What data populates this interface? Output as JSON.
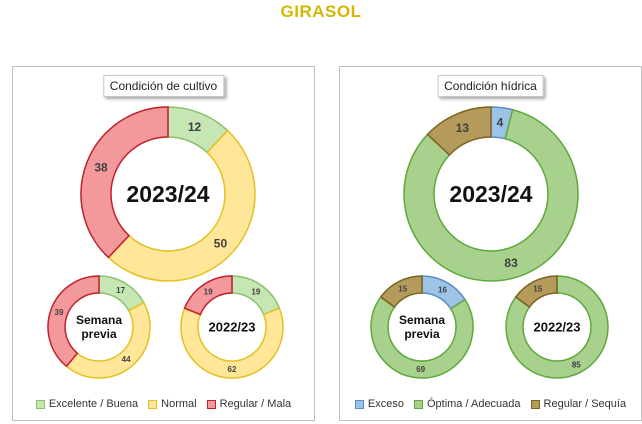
{
  "title": "GIRASOL",
  "chart_data": [
    {
      "type": "donut",
      "panel_title": "Condición de cultivo",
      "legend": [
        "Excelente / Buena",
        "Normal",
        "Regular / Mala"
      ],
      "colors": [
        "#c6e6b4",
        "#ffe699",
        "#f4999b"
      ],
      "edge_colors": [
        "#8cc06c",
        "#e6c020",
        "#c0202c"
      ],
      "donuts": [
        {
          "name": "2023/24",
          "values": [
            12,
            50,
            38
          ]
        },
        {
          "name": "Semana previa",
          "values": [
            17,
            44,
            39
          ]
        },
        {
          "name": "2022/23",
          "values": [
            19,
            62,
            19
          ]
        }
      ]
    },
    {
      "type": "donut",
      "panel_title": "Condición hídrica",
      "legend": [
        "Exceso",
        "Óptima / Adecuada",
        "Regular / Sequía"
      ],
      "colors": [
        "#9dc3e6",
        "#a9d18e",
        "#b49b5c"
      ],
      "edge_colors": [
        "#5b8ec4",
        "#5fa83a",
        "#7a6420"
      ],
      "donuts": [
        {
          "name": "2023/24",
          "values": [
            4,
            83,
            13
          ]
        },
        {
          "name": "Semana previa",
          "values": [
            16,
            69,
            15
          ]
        },
        {
          "name": "2022/23",
          "values": [
            0,
            85,
            15
          ]
        }
      ]
    }
  ]
}
